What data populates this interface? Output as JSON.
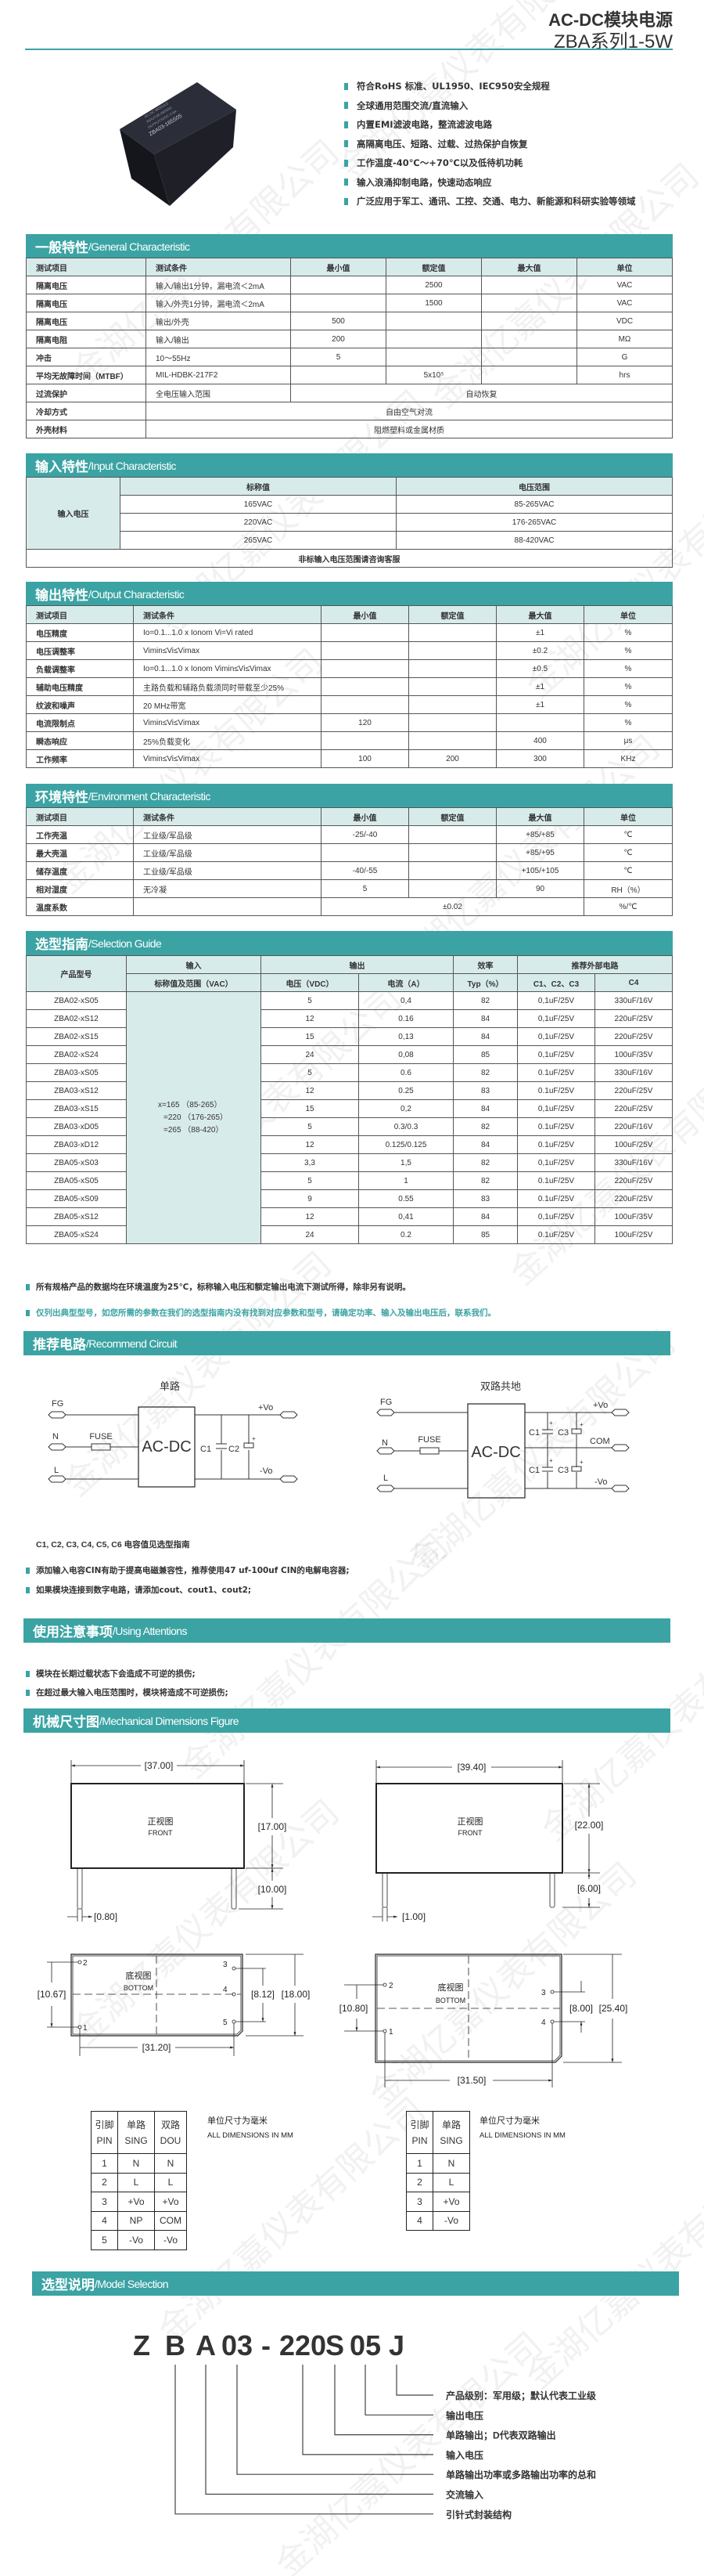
{
  "header": {
    "title1": "AC-DC模块电源",
    "title2": "ZBA系列1-5W",
    "accent": "#3ba3a3",
    "header_bg": "#d8ebeb"
  },
  "watermark": "金湖亿嘉仪表有限公司",
  "product": {
    "image": "product-photo",
    "label_lines": [
      "AC-DC MODULE",
      "INPUT:85-265VAC",
      "OUTPUT:5VDC 0.6A",
      "ZBA03-165S05"
    ]
  },
  "features": [
    "符合RoHS 标准、UL1950、IEC950安全规程",
    "全球通用范围交流/直流输入",
    "内置EMI滤波电路，整流滤波电路",
    "高隔离电压、短路、过载、过热保护自恢复",
    "工作温度-40℃～+70℃以及低待机功耗",
    "输入浪涌抑制电路，快速动态响应",
    "广泛应用于军工、通讯、工控、交通、电力、新能源和科研实验等领域"
  ],
  "general": {
    "title_cn": "一般特性",
    "title_en": "/General Characteristic",
    "headers": [
      "测试项目",
      "测试条件",
      "最小值",
      "额定值",
      "最大值",
      "单位"
    ],
    "rows": [
      [
        "隔离电压",
        "输入/输出1分钟，漏电流＜2mA",
        "",
        "2500",
        "",
        "VAC"
      ],
      [
        "隔离电压",
        "输入/外壳1分钟，漏电流＜2mA",
        "",
        "1500",
        "",
        "VAC"
      ],
      [
        "隔离电压",
        "输出/外壳",
        "500",
        "",
        "",
        "VDC"
      ],
      [
        "隔离电阻",
        "输入/输出",
        "200",
        "",
        "",
        "MΩ"
      ],
      [
        "冲击",
        "10～55Hz",
        "5",
        "",
        "",
        "G"
      ],
      [
        "平均无故障时间（MTBF）",
        "MIL-HDBK-217F2",
        "",
        "5x10⁵",
        "",
        "hrs"
      ],
      [
        "过流保护",
        "全电压输入范围",
        "自动恢复"
      ],
      [
        "冷却方式",
        "自由空气对流"
      ],
      [
        "外壳材料",
        "阻燃塑料或金属材质"
      ]
    ]
  },
  "input": {
    "title_cn": "输入特性",
    "title_en": "/Input Characteristic",
    "row_label": "输入电压",
    "headers": [
      "标称值",
      "电压范围"
    ],
    "rows": [
      [
        "165VAC",
        "85-265VAC"
      ],
      [
        "220VAC",
        "176-265VAC"
      ],
      [
        "265VAC",
        "88-420VAC"
      ]
    ],
    "note": "非标输入电压范围请咨询客服"
  },
  "output": {
    "title_cn": "输出特性",
    "title_en": "/Output Characteristic",
    "headers": [
      "测试项目",
      "测试条件",
      "最小值",
      "额定值",
      "最大值",
      "单位"
    ],
    "rows": [
      [
        "电压精度",
        "Io=0.1...1.0 x Ionom Vi=Vi rated",
        "",
        "",
        "±1",
        "%"
      ],
      [
        "电压调整率",
        "Vimin≤Vi≤Vimax",
        "",
        "",
        "±0.2",
        "%"
      ],
      [
        "负载调整率",
        "Io=0.1...1.0 x Ionom Vimin≤Vi≤Vimax",
        "",
        "",
        "±0.5",
        "%"
      ],
      [
        "辅助电压精度",
        "主路负载和辅路负载须同时带载至少25%",
        "",
        "",
        "±1",
        "%"
      ],
      [
        "纹波和噪声",
        "20 MHz带宽",
        "",
        "",
        "±1",
        "%"
      ],
      [
        "电流限制点",
        "Vimin≤Vi≤Vimax",
        "120",
        "",
        "",
        "%"
      ],
      [
        "瞬态响应",
        "25%负载变化",
        "",
        "",
        "400",
        "μs"
      ],
      [
        "工作频率",
        "Vimin≤Vi≤Vimax",
        "100",
        "200",
        "300",
        "KHz"
      ]
    ]
  },
  "environment": {
    "title_cn": "环境特性",
    "title_en": "/Environment Characteristic",
    "headers": [
      "测试项目",
      "测试条件",
      "最小值",
      "额定值",
      "最大值",
      "单位"
    ],
    "rows": [
      [
        "工作壳温",
        "工业级/军品级",
        "-25/-40",
        "",
        "+85/+85",
        "℃"
      ],
      [
        "最大壳温",
        "工业级/军品级",
        "",
        "",
        "+85/+95",
        "℃"
      ],
      [
        "储存温度",
        "工业级/军品级",
        "-40/-55",
        "",
        "+105/+105",
        "℃"
      ],
      [
        "相对湿度",
        "无冷凝",
        "5",
        "",
        "90",
        "RH（%）"
      ],
      [
        "温度系数",
        "",
        "±0.02",
        "%/℃"
      ]
    ]
  },
  "selection": {
    "title_cn": "选型指南",
    "title_en": "/Selection Guide",
    "group_headers": [
      "产品型号",
      "输入",
      "输出",
      "效率",
      "推荐外部电路"
    ],
    "sub_headers": [
      "标称值及范围（VAC）",
      "电压（VDC）",
      "电流（A）",
      "Typ（%）",
      "C1、C2、C3",
      "C4"
    ],
    "input_range": [
      "x=165 （85-265）",
      "=220 （176-265）",
      "=265 （88-420）"
    ],
    "rows": [
      [
        "ZBA02-xS05",
        "5",
        "0,4",
        "82",
        "0,1uF/25V",
        "330uF/16V"
      ],
      [
        "ZBA02-xS12",
        "12",
        "0.16",
        "84",
        "0,1uF/25V",
        "220uF/25V"
      ],
      [
        "ZBA02-xS15",
        "15",
        "0,13",
        "84",
        "0,1uF/25V",
        "220uF/25V"
      ],
      [
        "ZBA02-xS24",
        "24",
        "0,08",
        "85",
        "0,1uF/25V",
        "100uF/35V"
      ],
      [
        "ZBA03-xS05",
        "5",
        "0.6",
        "82",
        "0.1uF/25V",
        "330uF/16V"
      ],
      [
        "ZBA03-xS12",
        "12",
        "0.25",
        "83",
        "0.1uF/25V",
        "220uF/25V"
      ],
      [
        "ZBA03-xS15",
        "15",
        "0,2",
        "84",
        "0,1uF/25V",
        "220uF/25V"
      ],
      [
        "ZBA03-xD05",
        "5",
        "0.3/0.3",
        "82",
        "0.1uF/25V",
        "220uF/16V"
      ],
      [
        "ZBA03-xD12",
        "12",
        "0.125/0.125",
        "84",
        "0.1uF/25V",
        "100uF/25V"
      ],
      [
        "ZBA05-xS03",
        "3,3",
        "1,5",
        "82",
        "0,1uF/25V",
        "330uF/16V"
      ],
      [
        "ZBA05-xS05",
        "5",
        "1",
        "82",
        "0.1uF/25V",
        "220uF/25V"
      ],
      [
        "ZBA05-xS09",
        "9",
        "0.55",
        "83",
        "0.1uF/25V",
        "220uF/25V"
      ],
      [
        "ZBA05-xS12",
        "12",
        "0,41",
        "84",
        "0,1uF/25V",
        "100uF/35V"
      ],
      [
        "ZBA05-xS24",
        "24",
        "0.2",
        "85",
        "0.1uF/25V",
        "100uF/25V"
      ]
    ],
    "notes": [
      "所有规格产品的数据均在环境温度为25℃，标称输入电压和额定输出电流下测试所得，除非另有说明。",
      "仅列出典型型号，如您所需的参数在我们的选型指南内没有找到对应参数和型号，请确定功率、输入及输出电压后，联系我们。"
    ]
  },
  "circuit": {
    "title_cn": "推荐电路",
    "title_en": "/Recommend Circuit",
    "single": {
      "title": "单路",
      "fg": "FG",
      "n": "N",
      "l": "L",
      "fuse": "FUSE",
      "box": "AC-DC",
      "c1": "C1",
      "c2": "C2",
      "plus": "+",
      "vo_pos": "+Vo",
      "vo_neg": "-Vo"
    },
    "dual": {
      "title": "双路共地",
      "fg": "FG",
      "n": "N",
      "l": "L",
      "fuse": "FUSE",
      "box": "AC-DC",
      "c1": "C1",
      "c3": "C3",
      "plus": "+",
      "vo_pos": "+Vo",
      "com": "COM",
      "vo_neg": "-Vo"
    },
    "cap_note": "C1, C2, C3, C4, C5, C6 电容值见选型指南",
    "bullets": [
      "添加输入电容CIN有助于提高电磁兼容性，推荐使用47 uf-100uf CIN的电解电容器;",
      "如果模块连接到数字电路，请添加cout、cout1、cout2;"
    ]
  },
  "attention": {
    "title_cn": "使用注意事项",
    "title_en": "/Using Attentions",
    "bullets": [
      "模块在长期过载状态下会造成不可逆的损伤;",
      "在超过最大输入电压范围时，模块将造成不可逆损伤;"
    ]
  },
  "mechanical": {
    "title_cn": "机械尺寸图",
    "title_en": "/Mechanical Dimensions Figure",
    "front_cn": "正视图",
    "front_en": "FRONT",
    "bottom_cn": "底视图",
    "bottom_en": "BOTTOM",
    "left": {
      "width": "[37.00]",
      "height": "[17.00]",
      "pin_len": "[10.00]",
      "pin_dia": "[0.80]",
      "b_left": "[10.67]",
      "b_pin": "[8.12]",
      "b_height": "[18.00]",
      "b_width": "[31.20]",
      "pins": [
        "1",
        "2",
        "3",
        "4",
        "5"
      ]
    },
    "right": {
      "width": "[39.40]",
      "height": "[22.00]",
      "pin_len": "[6.00]",
      "pin_dia": "[1.00]",
      "b_left": "[10.80]",
      "b_pin": "[8.00]",
      "b_height": "[25.40]",
      "b_width": "[31.50]",
      "pins": [
        "1",
        "2",
        "3",
        "4"
      ]
    },
    "unit_cn": "单位尺寸为毫米",
    "unit_en": "ALL DIMENSIONS IN MM",
    "pin_table_left": {
      "headers": [
        [
          "引脚",
          "PIN"
        ],
        [
          "单路",
          "SING"
        ],
        [
          "双路",
          "DOU"
        ]
      ],
      "rows": [
        [
          "1",
          "N",
          "N"
        ],
        [
          "2",
          "L",
          "L"
        ],
        [
          "3",
          "+Vo",
          "+Vo"
        ],
        [
          "4",
          "NP",
          "COM"
        ],
        [
          "5",
          "-Vo",
          "-Vo"
        ]
      ]
    },
    "pin_table_right": {
      "headers": [
        [
          "引脚",
          "PIN"
        ],
        [
          "单路",
          "SING"
        ]
      ],
      "rows": [
        [
          "1",
          "N"
        ],
        [
          "2",
          "L"
        ],
        [
          "3",
          "+Vo"
        ],
        [
          "4",
          "-Vo"
        ]
      ]
    }
  },
  "model": {
    "title_cn": "选型说明",
    "title_en": "/Model Selection",
    "code": [
      "Z",
      "B",
      "A",
      "03",
      "-",
      "220",
      "S",
      "05",
      "J"
    ],
    "explanations": [
      "产品级别：军用级；默认代表工业级",
      "输出电压",
      "单路输出；D代表双路输出",
      "输入电压",
      "单路输出功率或多路输出功率的总和",
      "交流输入",
      "引针式封装结构"
    ]
  }
}
